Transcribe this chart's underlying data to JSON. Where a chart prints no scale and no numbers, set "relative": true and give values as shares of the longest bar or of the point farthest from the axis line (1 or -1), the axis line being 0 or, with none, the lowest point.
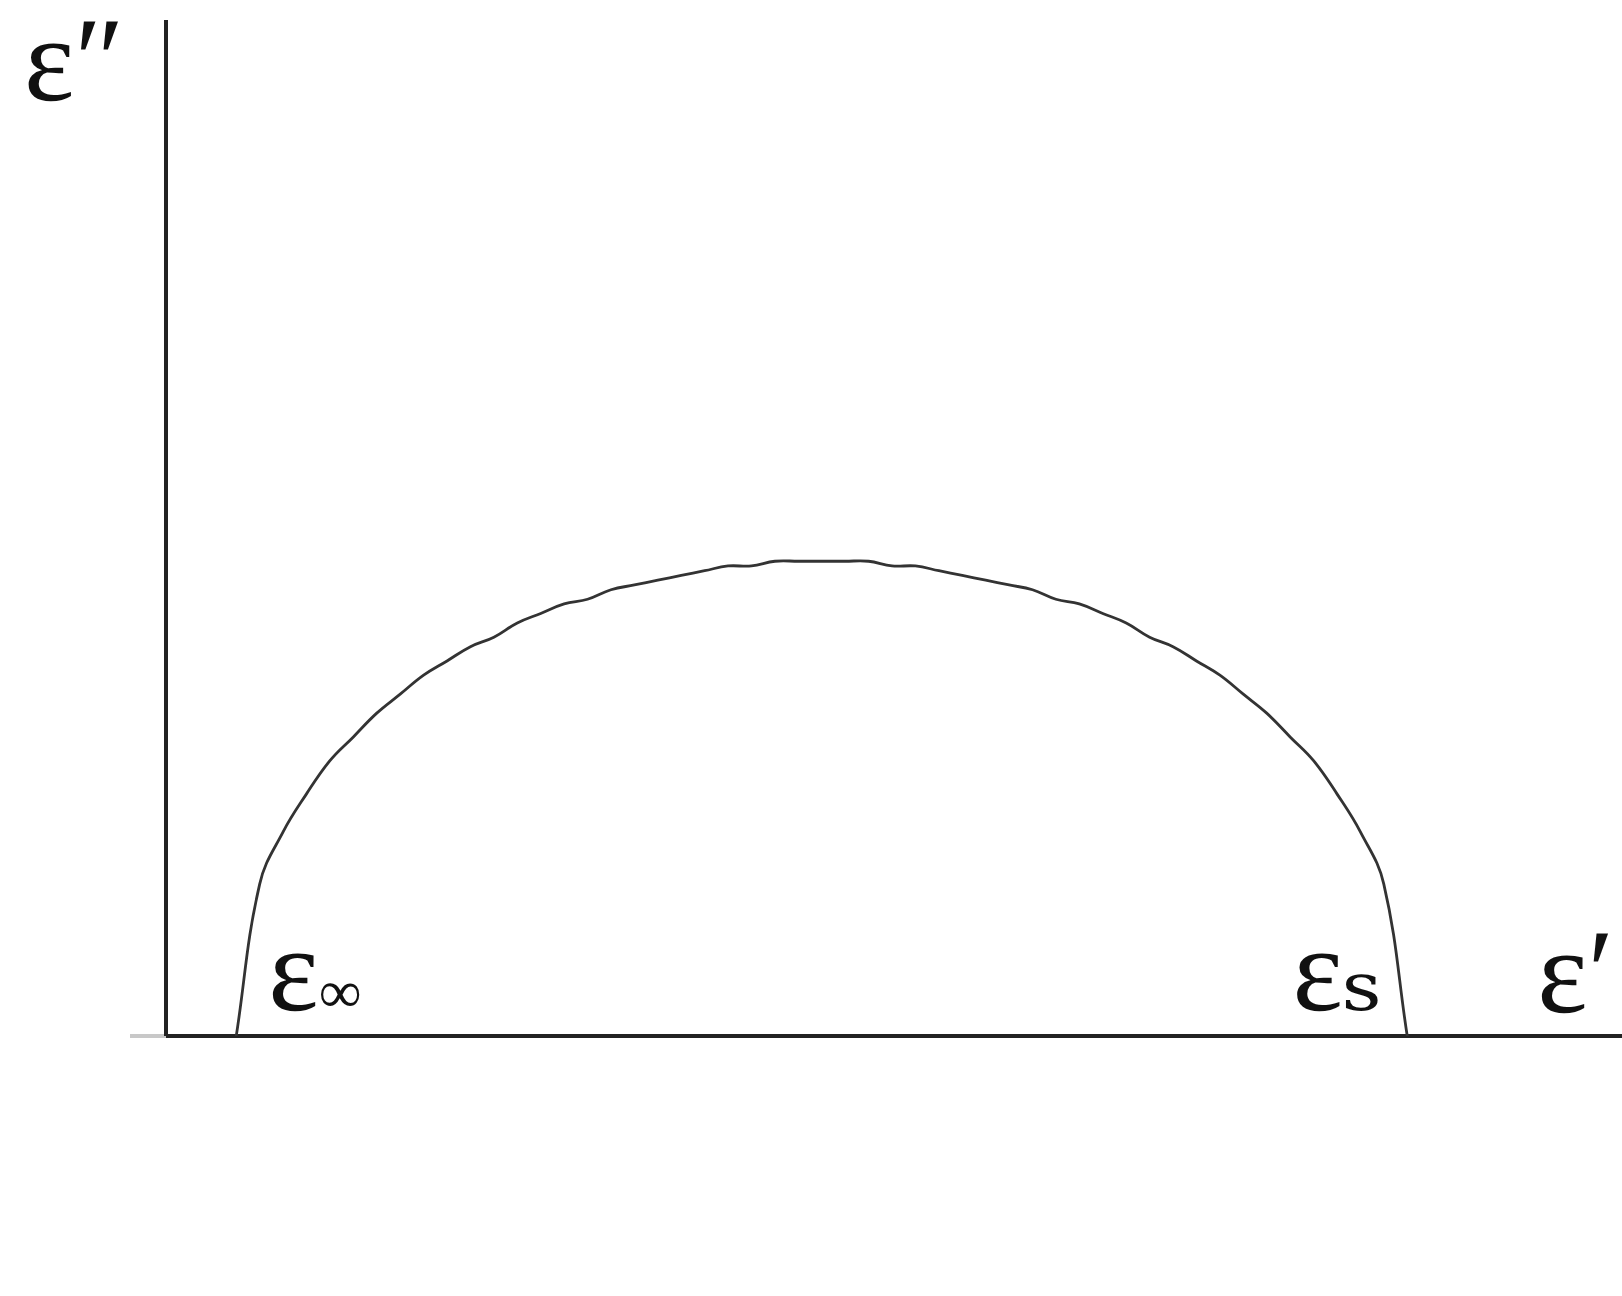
{
  "chart_data": {
    "type": "line",
    "relative": true,
    "xlabel": "ε′",
    "ylabel": "ε″",
    "tick_labels": false,
    "color": "#333333",
    "categories": [
      null,
      null,
      null,
      null,
      null,
      null,
      null,
      null,
      null,
      null,
      null,
      null,
      null,
      null,
      null,
      null,
      null,
      null,
      null,
      null,
      null,
      null,
      null,
      null,
      null,
      null,
      null,
      null,
      null,
      null,
      null,
      null,
      null,
      null,
      null,
      null,
      null,
      null,
      null,
      null,
      null,
      null,
      null,
      null,
      null,
      null,
      null,
      null,
      null,
      null,
      null,
      null,
      null,
      null,
      null,
      null,
      null,
      null,
      null,
      null,
      null,
      null,
      null
    ],
    "values": [
      null,
      null,
      null,
      0,
      0.32,
      0.43,
      0.51,
      0.58,
      0.63,
      0.68,
      0.72,
      0.76,
      0.79,
      0.82,
      0.84,
      0.87,
      0.89,
      0.91,
      0.92,
      0.94,
      0.95,
      0.96,
      0.97,
      0.98,
      0.99,
      0.99,
      1,
      1,
      1,
      1,
      1,
      0.99,
      0.99,
      0.98,
      0.97,
      0.96,
      0.95,
      0.94,
      0.92,
      0.91,
      0.89,
      0.87,
      0.84,
      0.82,
      0.79,
      0.76,
      0.72,
      0.68,
      0.63,
      0.58,
      0.51,
      0.43,
      0.32,
      0,
      null,
      null,
      null,
      null,
      null,
      null,
      null,
      null,
      null
    ],
    "annotations": [
      "ε$_{∞}$",
      "εₛ"
    ]
  }
}
